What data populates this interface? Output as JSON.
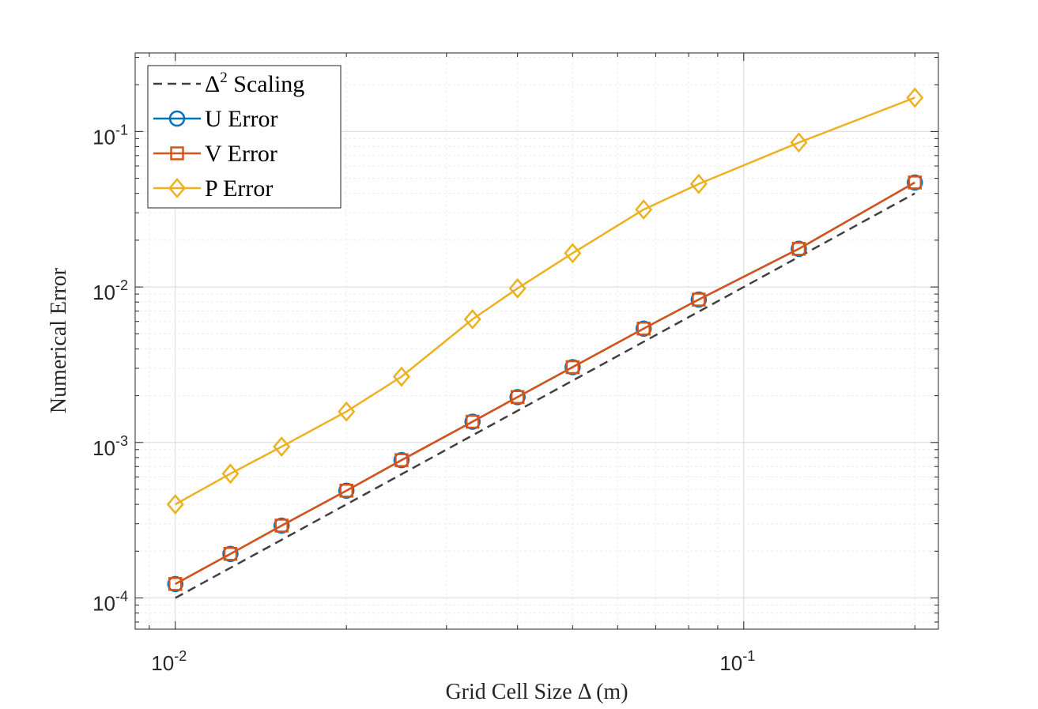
{
  "chart_data": {
    "type": "line",
    "xscale": "log",
    "yscale": "log",
    "xlim": [
      0.0085,
      0.22
    ],
    "ylim": [
      6.3e-05,
      0.32
    ],
    "xlabel": "Grid Cell Size Δ (m)",
    "ylabel": "Numerical Error",
    "grid": true,
    "legend_position": "top-left",
    "x_ticks": [
      {
        "base": "10",
        "exp": "-2",
        "value": 0.01
      },
      {
        "base": "10",
        "exp": "-1",
        "value": 0.1
      }
    ],
    "y_ticks": [
      {
        "base": "10",
        "exp": "-4",
        "value": 0.0001
      },
      {
        "base": "10",
        "exp": "-3",
        "value": 0.001
      },
      {
        "base": "10",
        "exp": "-2",
        "value": 0.01
      },
      {
        "base": "10",
        "exp": "-1",
        "value": 0.1
      }
    ],
    "x": [
      0.01,
      0.0125,
      0.01538,
      0.02,
      0.025,
      0.03333,
      0.04,
      0.05,
      0.06667,
      0.08333,
      0.125,
      0.2
    ],
    "series": [
      {
        "name": "Δ² Scaling",
        "legend_main": "Δ",
        "legend_sup": "2",
        "legend_rest": " Scaling",
        "color": "#404040",
        "style": "dashed",
        "marker": "none",
        "x": [
          0.01,
          0.2
        ],
        "values": [
          0.0001,
          0.04
        ]
      },
      {
        "name": "U Error",
        "color": "#0072BD",
        "style": "solid",
        "marker": "circle",
        "values": [
          0.000123,
          0.000192,
          0.000292,
          0.00049,
          0.00077,
          0.00136,
          0.00196,
          0.00305,
          0.0054,
          0.0083,
          0.0176,
          0.047
        ]
      },
      {
        "name": "V Error",
        "color": "#D95319",
        "style": "solid",
        "marker": "square",
        "values": [
          0.000123,
          0.000192,
          0.000292,
          0.00049,
          0.00077,
          0.00136,
          0.00196,
          0.00305,
          0.0054,
          0.0083,
          0.0176,
          0.047
        ]
      },
      {
        "name": "P Error",
        "color": "#EDB120",
        "style": "solid",
        "marker": "diamond",
        "values": [
          0.0004,
          0.00063,
          0.00094,
          0.00158,
          0.00265,
          0.0062,
          0.0098,
          0.0165,
          0.0315,
          0.046,
          0.085,
          0.165
        ]
      }
    ]
  }
}
